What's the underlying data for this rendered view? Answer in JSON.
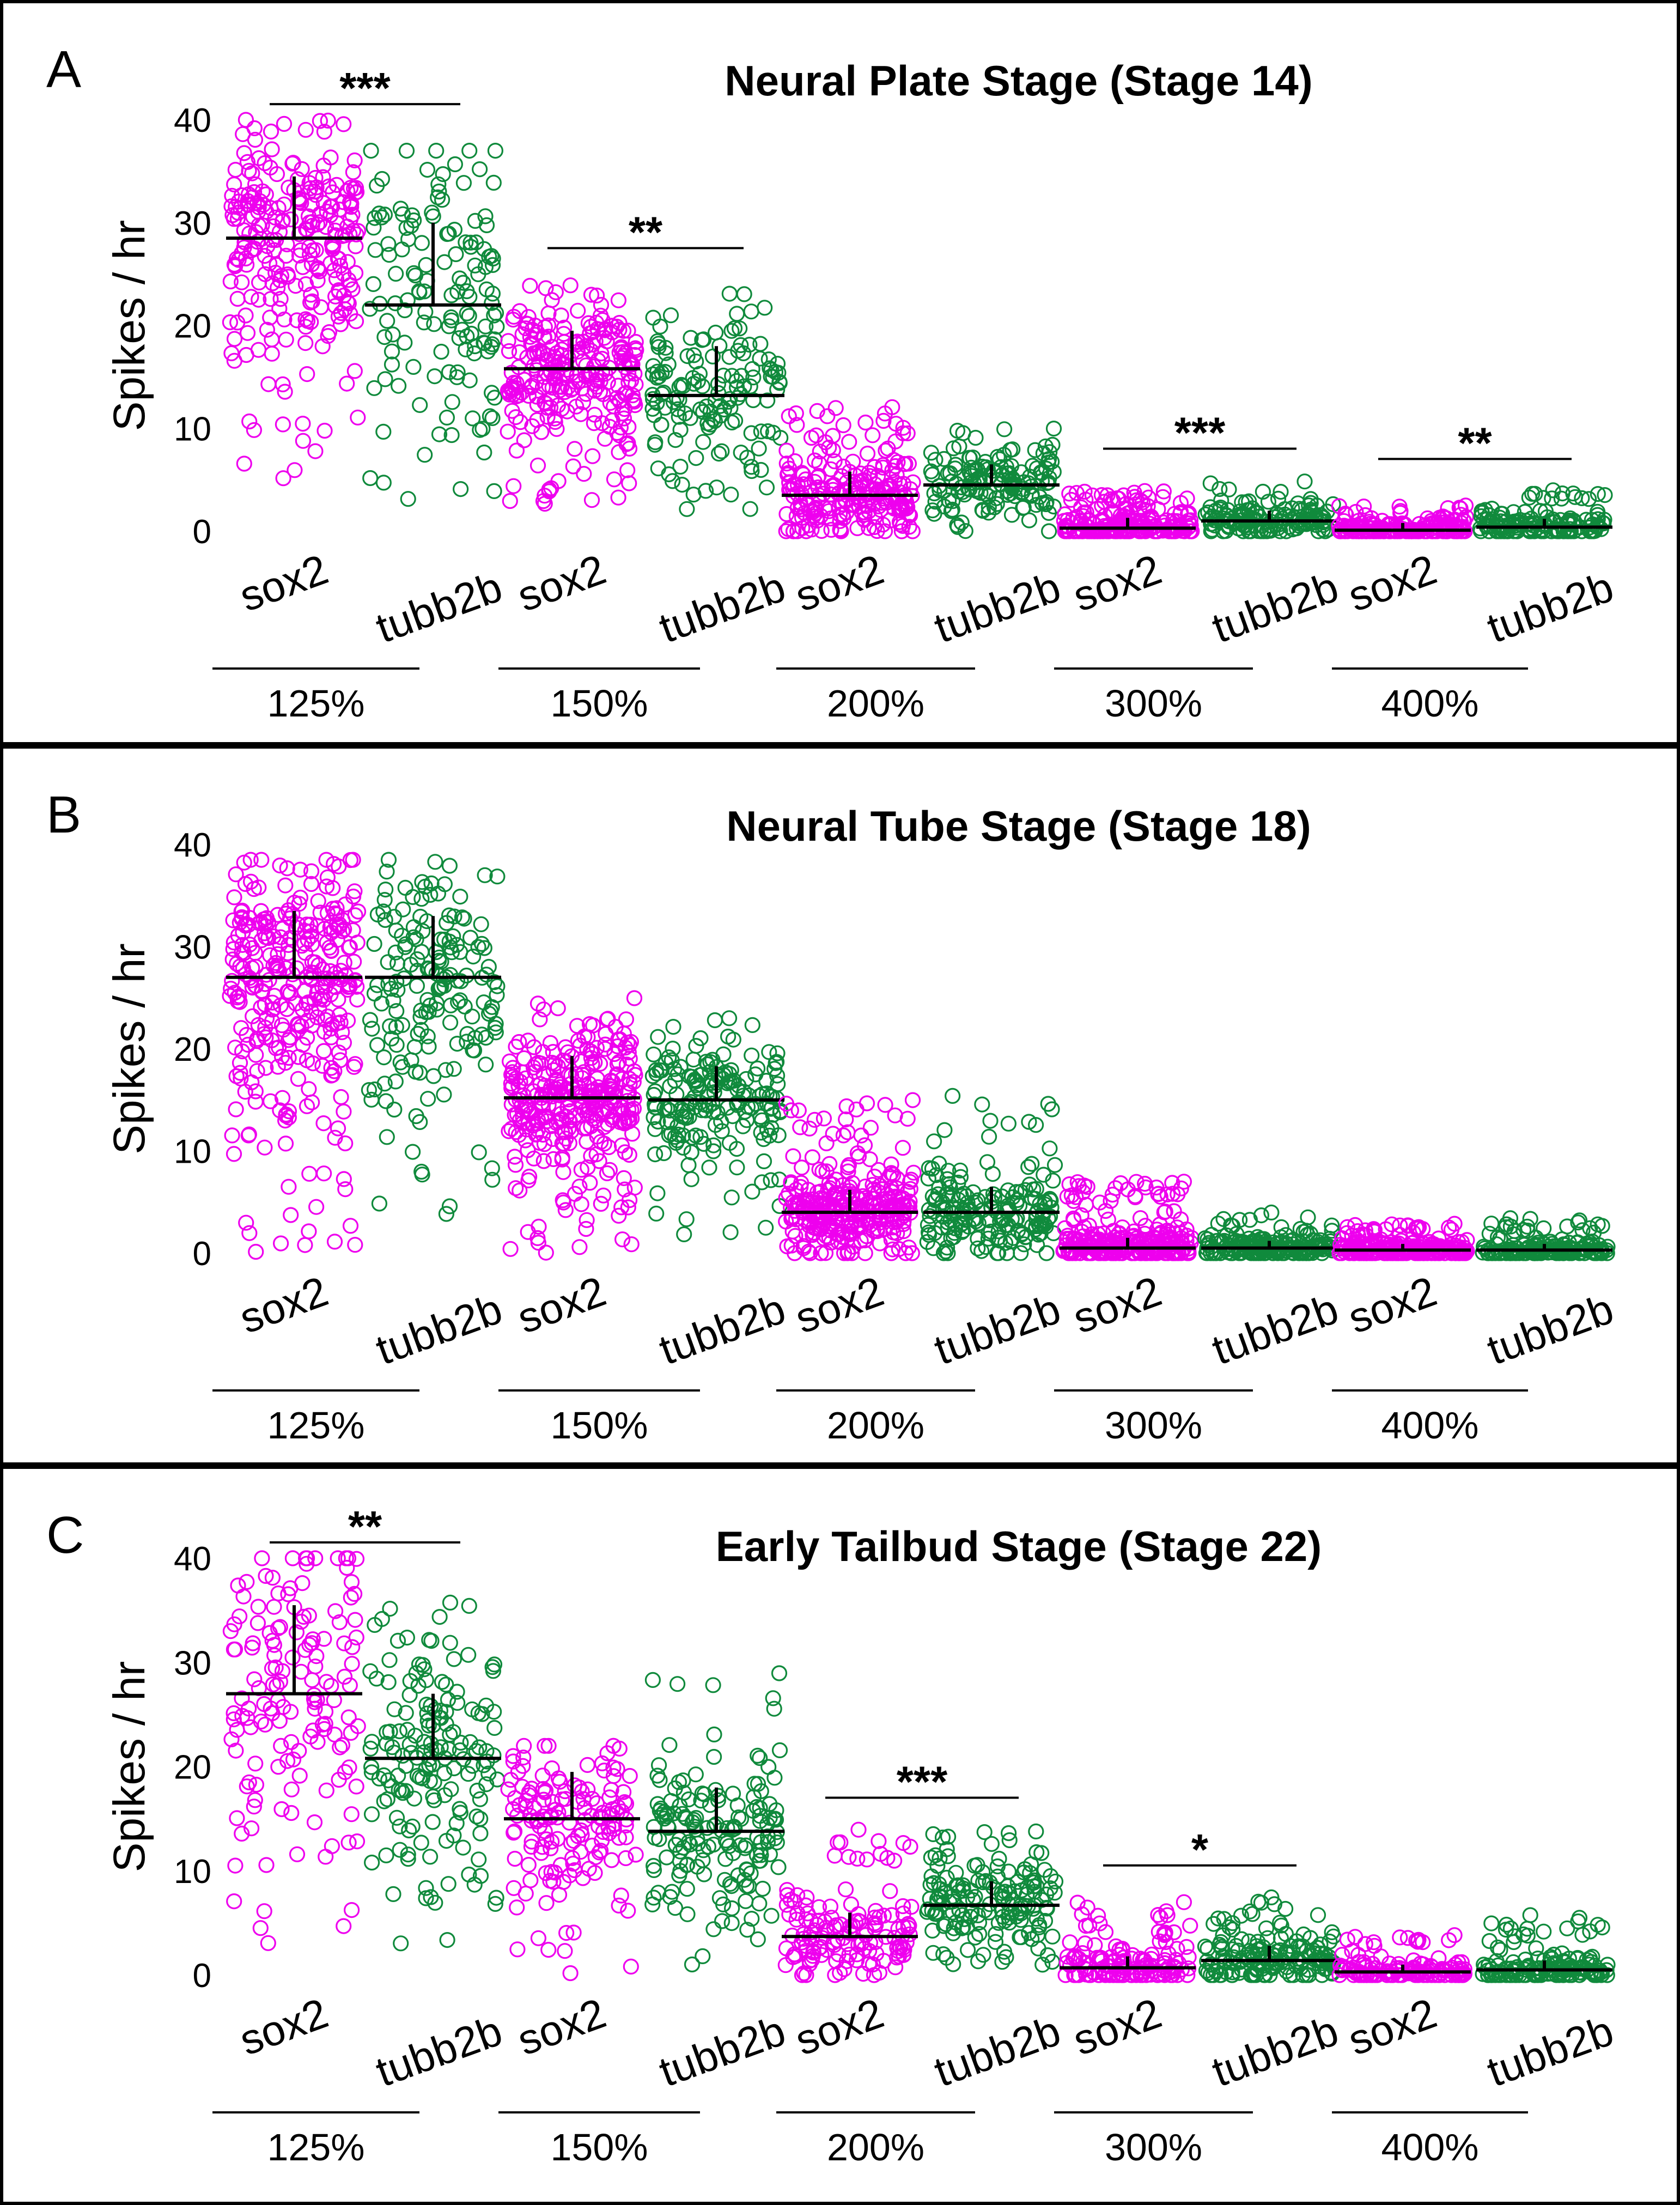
{
  "figure": {
    "ylabel": "Spikes / hr",
    "colors": {
      "sox2": "#ee00ee",
      "tubb2b": "#108a3c",
      "frame": "#000000",
      "marker": "#000000"
    }
  },
  "chart_data": [
    {
      "type": "scatter",
      "panel_letter": "A",
      "title": "Neural Plate Stage (Stage 14)",
      "ylabel": "Spikes / hr",
      "ylim": [
        0,
        40
      ],
      "yticks": [
        0,
        10,
        20,
        30,
        40
      ],
      "grid": false,
      "legend": "none",
      "groups": [
        {
          "label": "125%",
          "series": [
            {
              "name": "sox2",
              "median": 28.5,
              "upper": 34.5,
              "spread_max": 40,
              "spread_min": 4,
              "count": 260
            },
            {
              "name": "tubb2b",
              "median": 22.0,
              "upper": 30.0,
              "spread_max": 37,
              "spread_min": 3,
              "count": 140
            }
          ],
          "significance": "***"
        },
        {
          "label": "150%",
          "series": [
            {
              "name": "sox2",
              "median": 15.8,
              "upper": 19.5,
              "spread_max": 24,
              "spread_min": 2,
              "count": 260
            },
            {
              "name": "tubb2b",
              "median": 13.2,
              "upper": 18.0,
              "spread_max": 24.5,
              "spread_min": 1,
              "count": 140
            }
          ],
          "significance": "**"
        },
        {
          "label": "200%",
          "series": [
            {
              "name": "sox2",
              "median": 3.5,
              "upper": 5.8,
              "spread_max": 12.5,
              "spread_min": 0,
              "count": 230
            },
            {
              "name": "tubb2b",
              "median": 4.5,
              "upper": 6.5,
              "spread_max": 10,
              "spread_min": 0,
              "count": 140
            }
          ],
          "significance": ""
        },
        {
          "label": "300%",
          "series": [
            {
              "name": "sox2",
              "median": 0.3,
              "upper": 1.3,
              "spread_max": 4,
              "spread_min": 0,
              "count": 200
            },
            {
              "name": "tubb2b",
              "median": 1.0,
              "upper": 2.0,
              "spread_max": 5,
              "spread_min": 0,
              "count": 140
            }
          ],
          "significance": "***"
        },
        {
          "label": "400%",
          "series": [
            {
              "name": "sox2",
              "median": 0.1,
              "upper": 0.8,
              "spread_max": 2.5,
              "spread_min": 0,
              "count": 180
            },
            {
              "name": "tubb2b",
              "median": 0.4,
              "upper": 1.2,
              "spread_max": 4,
              "spread_min": 0,
              "count": 140
            }
          ],
          "significance": "**"
        }
      ]
    },
    {
      "type": "scatter",
      "panel_letter": "B",
      "title": "Neural Tube Stage (Stage 18)",
      "ylabel": "Spikes / hr",
      "ylim": [
        0,
        40
      ],
      "yticks": [
        0,
        10,
        20,
        30,
        40
      ],
      "grid": false,
      "legend": "none",
      "groups": [
        {
          "label": "125%",
          "series": [
            {
              "name": "sox2",
              "median": 27.0,
              "upper": 33.5,
              "spread_max": 38.5,
              "spread_min": 0,
              "count": 320
            },
            {
              "name": "tubb2b",
              "median": 27.0,
              "upper": 33.0,
              "spread_max": 38.5,
              "spread_min": 3,
              "count": 170
            }
          ],
          "significance": ""
        },
        {
          "label": "150%",
          "series": [
            {
              "name": "sox2",
              "median": 15.2,
              "upper": 19.3,
              "spread_max": 25,
              "spread_min": 0,
              "count": 320
            },
            {
              "name": "tubb2b",
              "median": 15.0,
              "upper": 18.3,
              "spread_max": 23,
              "spread_min": 1.5,
              "count": 180
            }
          ],
          "significance": ""
        },
        {
          "label": "200%",
          "series": [
            {
              "name": "sox2",
              "median": 4.0,
              "upper": 6.2,
              "spread_max": 15,
              "spread_min": 0,
              "count": 300
            },
            {
              "name": "tubb2b",
              "median": 4.0,
              "upper": 6.5,
              "spread_max": 16,
              "spread_min": 0,
              "count": 180
            }
          ],
          "significance": ""
        },
        {
          "label": "300%",
          "series": [
            {
              "name": "sox2",
              "median": 0.5,
              "upper": 1.5,
              "spread_max": 7,
              "spread_min": 0,
              "count": 250
            },
            {
              "name": "tubb2b",
              "median": 0.5,
              "upper": 1.2,
              "spread_max": 4,
              "spread_min": 0,
              "count": 170
            }
          ],
          "significance": ""
        },
        {
          "label": "400%",
          "series": [
            {
              "name": "sox2",
              "median": 0.3,
              "upper": 0.9,
              "spread_max": 3,
              "spread_min": 0,
              "count": 220
            },
            {
              "name": "tubb2b",
              "median": 0.3,
              "upper": 0.9,
              "spread_max": 3.5,
              "spread_min": 0,
              "count": 160
            }
          ],
          "significance": ""
        }
      ]
    },
    {
      "type": "scatter",
      "panel_letter": "C",
      "title": "Early Tailbud Stage (Stage 22)",
      "ylabel": "Spikes / hr",
      "ylim": [
        0,
        40
      ],
      "yticks": [
        0,
        10,
        20,
        30,
        40
      ],
      "grid": false,
      "legend": "none",
      "groups": [
        {
          "label": "125%",
          "series": [
            {
              "name": "sox2",
              "median": 27.0,
              "upper": 35.5,
              "spread_max": 40,
              "spread_min": 3,
              "count": 150
            },
            {
              "name": "tubb2b",
              "median": 20.8,
              "upper": 27.0,
              "spread_max": 36.5,
              "spread_min": 2.5,
              "count": 160
            }
          ],
          "significance": "**"
        },
        {
          "label": "150%",
          "series": [
            {
              "name": "sox2",
              "median": 15.0,
              "upper": 19.5,
              "spread_max": 22,
              "spread_min": 0,
              "count": 150
            },
            {
              "name": "tubb2b",
              "median": 13.8,
              "upper": 18.0,
              "spread_max": 29,
              "spread_min": 1,
              "count": 160
            }
          ],
          "significance": ""
        },
        {
          "label": "200%",
          "series": [
            {
              "name": "sox2",
              "median": 3.7,
              "upper": 6.0,
              "spread_max": 14,
              "spread_min": 0,
              "count": 140
            },
            {
              "name": "tubb2b",
              "median": 6.7,
              "upper": 9.0,
              "spread_max": 14,
              "spread_min": 1,
              "count": 160
            }
          ],
          "significance": "***"
        },
        {
          "label": "300%",
          "series": [
            {
              "name": "sox2",
              "median": 0.7,
              "upper": 1.8,
              "spread_max": 7,
              "spread_min": 0,
              "count": 140
            },
            {
              "name": "tubb2b",
              "median": 1.4,
              "upper": 2.8,
              "spread_max": 7.5,
              "spread_min": 0,
              "count": 160
            }
          ],
          "significance": "*"
        },
        {
          "label": "400%",
          "series": [
            {
              "name": "sox2",
              "median": 0.3,
              "upper": 1.0,
              "spread_max": 4,
              "spread_min": 0,
              "count": 130
            },
            {
              "name": "tubb2b",
              "median": 0.5,
              "upper": 1.4,
              "spread_max": 6,
              "spread_min": 0,
              "count": 150
            }
          ],
          "significance": ""
        }
      ]
    }
  ]
}
